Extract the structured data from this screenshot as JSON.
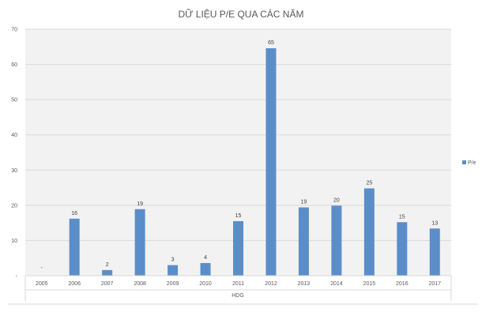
{
  "chart_data": {
    "type": "bar",
    "title": "DỮ LIỆU P/E QUA CÁC NĂM",
    "group_label": "HDG",
    "categories": [
      "2005",
      "2006",
      "2007",
      "2008",
      "2009",
      "2010",
      "2011",
      "2012",
      "2013",
      "2014",
      "2015",
      "2016",
      "2017"
    ],
    "series": [
      {
        "name": "P/e",
        "values": [
          0,
          16.2,
          1.6,
          18.9,
          3.0,
          3.6,
          15.5,
          64.6,
          19.4,
          19.9,
          24.8,
          15.2,
          13.4
        ],
        "data_labels": [
          "-",
          "16",
          "2",
          "19",
          "3",
          "4",
          "15",
          "65",
          "19",
          "20",
          "25",
          "15",
          "13"
        ],
        "color": "#5b8ec9"
      }
    ],
    "yticks": [
      "-",
      "10",
      "20",
      "30",
      "40",
      "50",
      "60",
      "70"
    ],
    "ylim": [
      0,
      70
    ],
    "grid": true,
    "legend_position": "right",
    "colors": {
      "plot_bg": "#f2f2f2",
      "grid": "#d9d9d9",
      "text": "#595959"
    }
  }
}
